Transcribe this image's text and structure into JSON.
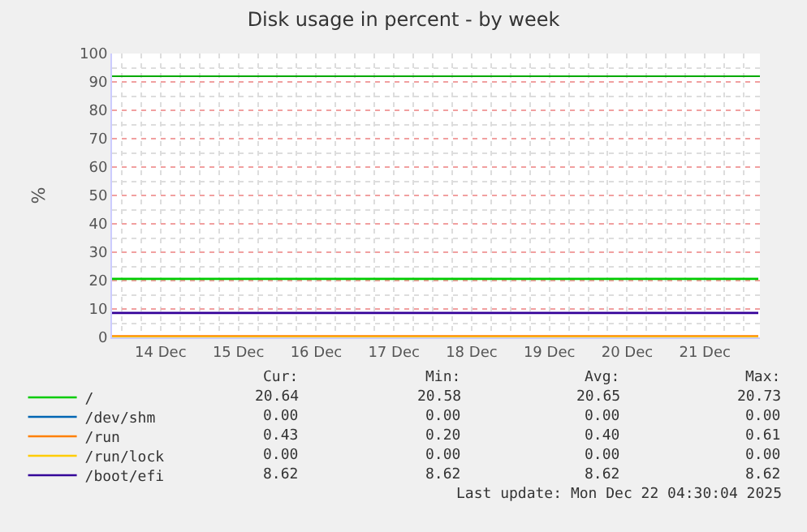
{
  "chart_data": {
    "type": "line",
    "title": "Disk usage in percent - by week",
    "ylabel": "%",
    "x": [
      "2025-12-13T21:00",
      "2025-12-22T04:30"
    ],
    "series": [
      {
        "name": "/",
        "color": "#00cc00",
        "values": [
          20.6,
          20.6
        ]
      },
      {
        "name": "/dev/shm",
        "color": "#0066b3",
        "values": [
          null,
          null
        ]
      },
      {
        "name": "/run",
        "color": "#ff8000",
        "values": [
          0.4,
          0.4
        ]
      },
      {
        "name": "/run/lock",
        "color": "#ffcc00",
        "values": [
          0,
          0
        ]
      },
      {
        "name": "/boot/efi",
        "color": "#330099",
        "values": [
          8.6,
          8.6
        ]
      }
    ],
    "ref_lines": [
      {
        "axis": "y",
        "value": 92,
        "label": null,
        "color": "#00aa00"
      }
    ],
    "xlim": [
      "2025-12-13T21:00",
      "2025-12-22T05:00"
    ],
    "xticks": [
      {
        "value": "2025-12-14T12:00",
        "label": "14 Dec"
      },
      {
        "value": "2025-12-15T12:00",
        "label": "15 Dec"
      },
      {
        "value": "2025-12-16T12:00",
        "label": "16 Dec"
      },
      {
        "value": "2025-12-17T12:00",
        "label": "17 Dec"
      },
      {
        "value": "2025-12-18T12:00",
        "label": "18 Dec"
      },
      {
        "value": "2025-12-19T12:00",
        "label": "19 Dec"
      },
      {
        "value": "2025-12-20T12:00",
        "label": "20 Dec"
      },
      {
        "value": "2025-12-21T12:00",
        "label": "21 Dec"
      }
    ],
    "ylim": [
      0,
      100
    ],
    "yticks": [
      0,
      10,
      20,
      30,
      40,
      50,
      60,
      70,
      80,
      90,
      100
    ],
    "grid": true,
    "legend": "bottom",
    "marker": "none",
    "line_style": "solid",
    "annotations": [
      "Cur:",
      "Min:",
      "Avg:",
      "Max:",
      "20.64",
      "20.58",
      "20.65",
      "20.73",
      "0.00",
      "0.00",
      "0.00",
      "0.00",
      "0.43",
      "0.20",
      "0.40",
      "0.61",
      "0.00",
      "0.00",
      "0.00",
      "0.00",
      "8.62",
      "8.62",
      "8.62",
      "8.62",
      "Last update: Mon Dec 22 04:30:04 2025"
    ]
  }
}
